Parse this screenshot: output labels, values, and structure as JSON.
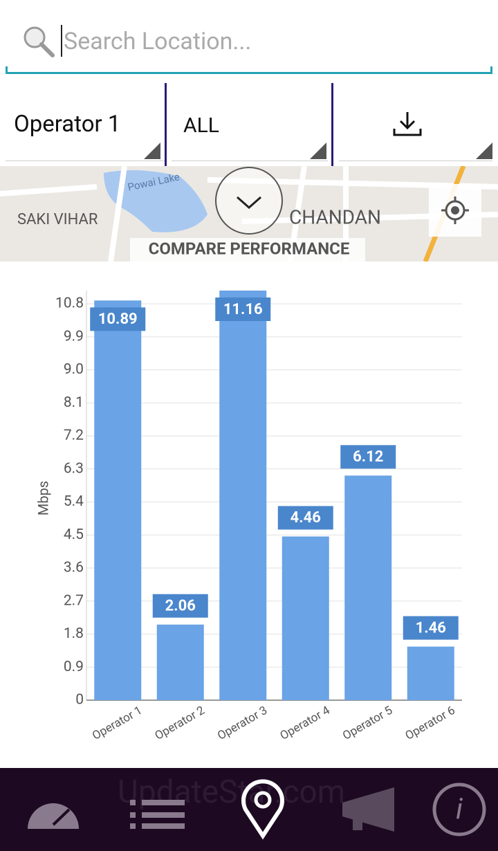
{
  "search": {
    "placeholder": "Search Location..."
  },
  "filters": [
    "Operator 1",
    "ALL"
  ],
  "map": {
    "labels": [
      "Powai Lake",
      "SAKI VIHAR",
      "CHANDAN"
    ],
    "title": "COMPARE PERFORMANCE"
  },
  "chart_data": {
    "type": "bar",
    "y_label": "Mbps",
    "categories": [
      "Operator 1",
      "Operator 2",
      "Operator 3",
      "Operator 4",
      "Operator 5",
      "Operator 6"
    ],
    "values": [
      10.89,
      2.06,
      11.16,
      4.46,
      6.12,
      1.46
    ],
    "color": "#6aa3e6",
    "label_color": "#4a86cc",
    "ylim": [
      0,
      11.16
    ],
    "yticks": [
      0,
      0.9,
      1.8,
      2.7,
      3.6,
      4.5,
      5.4,
      6.3,
      7.2,
      8.1,
      {
        "value": 9,
        "label": "9.0"
      },
      9.9,
      10.8
    ],
    "grid": true
  },
  "watermark": "UpdateStar.com"
}
